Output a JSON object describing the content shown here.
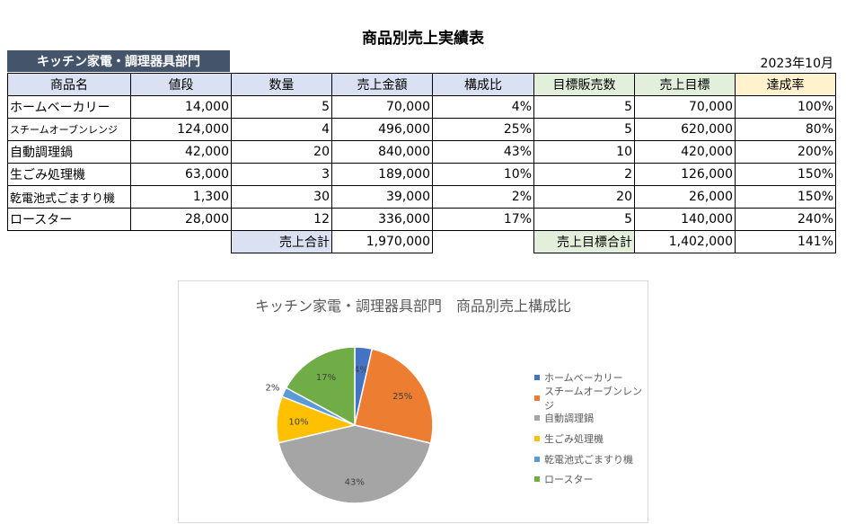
{
  "title": "商品別売上実績表",
  "department": "キッチン家電・調理器具部門",
  "period": "2023年10月",
  "headers": [
    "商品名",
    "値段",
    "数量",
    "売上金額",
    "構成比",
    "目標販売数",
    "売上目標",
    "達成率"
  ],
  "rows": [
    {
      "name": "ホームベーカリー",
      "price": "14,000",
      "qty": "5",
      "sales": "70,000",
      "ratio": "4%",
      "target_qty": "5",
      "target_sales": "70,000",
      "achieve": "100%"
    },
    {
      "name": "スチームオーブンレンジ",
      "price": "124,000",
      "qty": "4",
      "sales": "496,000",
      "ratio": "25%",
      "target_qty": "5",
      "target_sales": "620,000",
      "achieve": "80%"
    },
    {
      "name": "自動調理鍋",
      "price": "42,000",
      "qty": "20",
      "sales": "840,000",
      "ratio": "43%",
      "target_qty": "10",
      "target_sales": "420,000",
      "achieve": "200%"
    },
    {
      "name": "生ごみ処理機",
      "price": "63,000",
      "qty": "3",
      "sales": "189,000",
      "ratio": "10%",
      "target_qty": "2",
      "target_sales": "126,000",
      "achieve": "150%"
    },
    {
      "name": "乾電池式ごますり機",
      "price": "1,300",
      "qty": "30",
      "sales": "39,000",
      "ratio": "2%",
      "target_qty": "20",
      "target_sales": "26,000",
      "achieve": "150%"
    },
    {
      "name": "ロースター",
      "price": "28,000",
      "qty": "12",
      "sales": "336,000",
      "ratio": "17%",
      "target_qty": "5",
      "target_sales": "140,000",
      "achieve": "240%"
    }
  ],
  "totals": {
    "sales_label": "売上合計",
    "sales_value": "1,970,000",
    "target_label": "売上目標合計",
    "target_value": "1,402,000",
    "achieve_value": "141%"
  },
  "colors": {
    "dept_bg": "#44546a",
    "header_blue": "#d9e1f2",
    "header_green": "#e2efda",
    "header_yellow": "#fff2cc"
  },
  "chart_data": {
    "type": "pie",
    "title": "キッチン家電・調理器具部門　商品別売上構成比",
    "categories": [
      "ホームベーカリー",
      "スチームオーブンレンジ",
      "自動調理鍋",
      "生ごみ処理機",
      "乾電池式ごますり機",
      "ロースター"
    ],
    "values": [
      70000,
      496000,
      840000,
      189000,
      39000,
      336000
    ],
    "labels": [
      "4%",
      "25%",
      "43%",
      "10%",
      "2%",
      "17%"
    ],
    "colors": [
      "#4472c4",
      "#ed7d31",
      "#a5a5a5",
      "#ffc000",
      "#5b9bd5",
      "#70ad47"
    ],
    "legend_position": "right"
  }
}
